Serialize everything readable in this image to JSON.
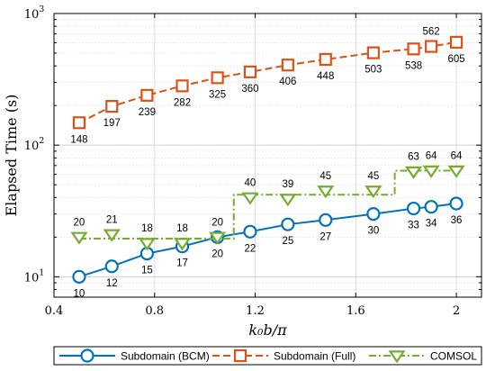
{
  "chart_data": {
    "type": "line",
    "xlabel": "k₀b/π",
    "ylabel": "Elapsed Time (s)",
    "xlim": [
      0.4,
      2.1
    ],
    "ylim": [
      7,
      1000
    ],
    "y_scale": "log",
    "x_ticks": [
      "0.4",
      "0.8",
      "1.2",
      "1.6",
      "2"
    ],
    "x_tick_values": [
      0.4,
      0.8,
      1.2,
      1.6,
      2.0
    ],
    "y_ticks": [
      {
        "value": 10,
        "mantissa": "10",
        "exp": "1"
      },
      {
        "value": 100,
        "mantissa": "10",
        "exp": "2"
      },
      {
        "value": 1000,
        "mantissa": "10",
        "exp": "3"
      }
    ],
    "grid": true,
    "legend_position": "bottom",
    "series": [
      {
        "name": "Subdomain (BCM)",
        "color": "#0072BD",
        "marker": "circle",
        "line": "solid",
        "step": false,
        "label_position": "below",
        "points": [
          {
            "x": 0.5,
            "y": 10,
            "label": "10"
          },
          {
            "x": 0.63,
            "y": 12,
            "label": "12"
          },
          {
            "x": 0.77,
            "y": 15,
            "label": "15"
          },
          {
            "x": 0.91,
            "y": 17,
            "label": "17"
          },
          {
            "x": 1.05,
            "y": 20,
            "label": "20"
          },
          {
            "x": 1.18,
            "y": 22,
            "label": "22"
          },
          {
            "x": 1.33,
            "y": 25,
            "label": "25"
          },
          {
            "x": 1.48,
            "y": 27,
            "label": "27"
          },
          {
            "x": 1.67,
            "y": 30,
            "label": "30"
          },
          {
            "x": 1.83,
            "y": 33,
            "label": "33"
          },
          {
            "x": 1.9,
            "y": 34,
            "label": "34"
          },
          {
            "x": 2.0,
            "y": 36,
            "label": "36"
          }
        ]
      },
      {
        "name": "Subdomain (Full)",
        "color": "#D95319",
        "marker": "square",
        "line": "dashed",
        "step": false,
        "label_position": "below",
        "points": [
          {
            "x": 0.5,
            "y": 148,
            "label": "148"
          },
          {
            "x": 0.63,
            "y": 197,
            "label": "197"
          },
          {
            "x": 0.77,
            "y": 239,
            "label": "239"
          },
          {
            "x": 0.91,
            "y": 282,
            "label": "282"
          },
          {
            "x": 1.05,
            "y": 325,
            "label": "325"
          },
          {
            "x": 1.18,
            "y": 360,
            "label": "360"
          },
          {
            "x": 1.33,
            "y": 406,
            "label": "406"
          },
          {
            "x": 1.48,
            "y": 448,
            "label": "448"
          },
          {
            "x": 1.67,
            "y": 503,
            "label": "503"
          },
          {
            "x": 1.83,
            "y": 538,
            "label": "538"
          },
          {
            "x": 1.9,
            "y": 562,
            "label": "562",
            "label_position": "above"
          },
          {
            "x": 2.0,
            "y": 605,
            "label": "605"
          }
        ]
      },
      {
        "name": "COMSOL",
        "color": "#77AC30",
        "marker": "triangle-down",
        "line": "dashdot",
        "step": true,
        "label_position": "above",
        "points": [
          {
            "x": 0.5,
            "y": 20,
            "label": "20"
          },
          {
            "x": 0.63,
            "y": 21,
            "label": "21"
          },
          {
            "x": 0.77,
            "y": 18,
            "label": "18"
          },
          {
            "x": 0.91,
            "y": 18,
            "label": "18"
          },
          {
            "x": 1.05,
            "y": 20,
            "label": "20"
          },
          {
            "x": 1.18,
            "y": 40,
            "label": "40"
          },
          {
            "x": 1.33,
            "y": 39,
            "label": "39"
          },
          {
            "x": 1.48,
            "y": 45,
            "label": "45"
          },
          {
            "x": 1.67,
            "y": 45,
            "label": "45"
          },
          {
            "x": 1.83,
            "y": 63,
            "label": "63"
          },
          {
            "x": 1.9,
            "y": 64,
            "label": "64"
          },
          {
            "x": 2.0,
            "y": 64,
            "label": "64"
          }
        ],
        "step_levels": [
          {
            "x0": 0.5,
            "x1": 1.115,
            "y": 19.5
          },
          {
            "x0": 1.115,
            "x1": 1.755,
            "y": 42
          },
          {
            "x0": 1.755,
            "x1": 2.0,
            "y": 64
          }
        ]
      }
    ]
  }
}
